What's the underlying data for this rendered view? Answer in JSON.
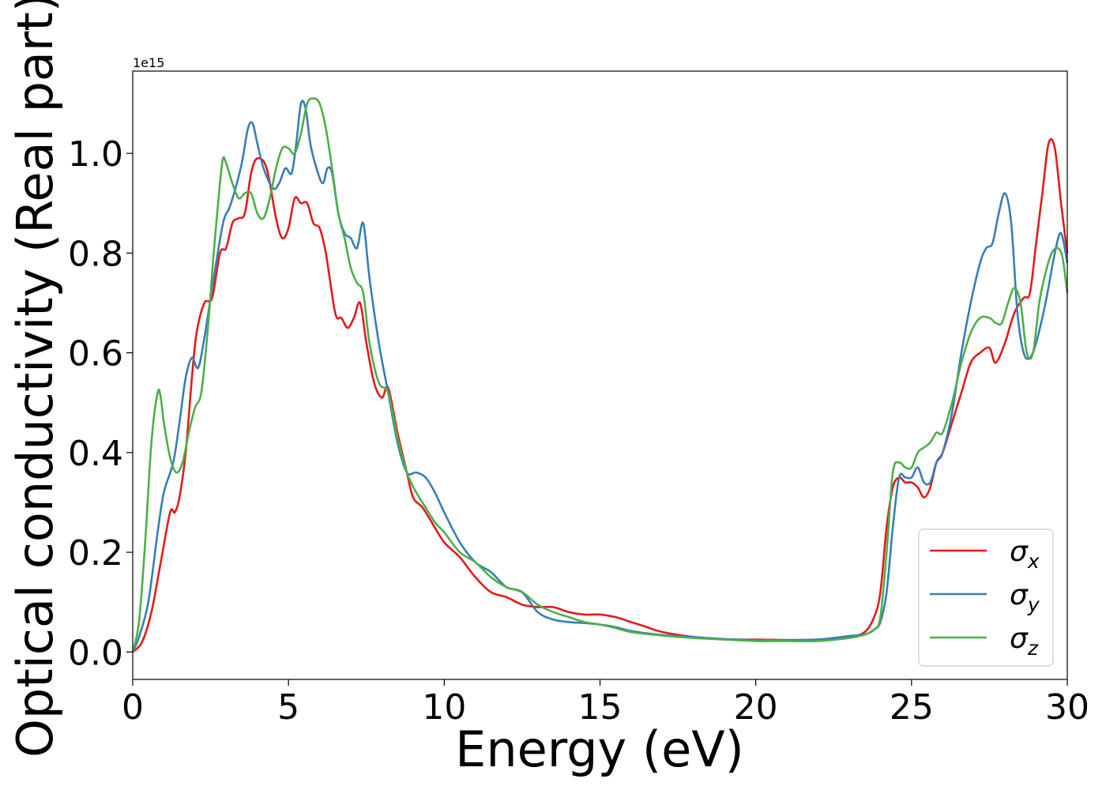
{
  "chart_data": {
    "type": "line",
    "xlabel": "Energy (eV)",
    "ylabel": "Optical conductivity (Real part)",
    "offset_text": "1e15",
    "xlim": [
      0,
      30
    ],
    "ylim": [
      -0.055,
      1.165
    ],
    "xticks": [
      0,
      5,
      10,
      15,
      20,
      25,
      30
    ],
    "xtick_labels": [
      "0",
      "5",
      "10",
      "15",
      "20",
      "25",
      "30"
    ],
    "yticks": [
      0.0,
      0.2,
      0.4,
      0.6,
      0.8,
      1.0
    ],
    "ytick_labels": [
      "0.0",
      "0.2",
      "0.4",
      "0.6",
      "0.8",
      "1.0"
    ],
    "grid": false,
    "legend_position": "lower-right",
    "series": [
      {
        "name": "σx",
        "symbol": "σ",
        "subscript": "x",
        "color": "#e41a1c",
        "x": [
          0,
          0.3,
          0.6,
          0.9,
          1.2,
          1.35,
          1.5,
          1.7,
          1.9,
          2.05,
          2.3,
          2.55,
          2.8,
          3.0,
          3.2,
          3.4,
          3.6,
          3.8,
          4.0,
          4.3,
          4.6,
          4.8,
          5.0,
          5.2,
          5.4,
          5.6,
          5.8,
          6.0,
          6.2,
          6.5,
          6.7,
          6.9,
          7.1,
          7.3,
          7.5,
          7.75,
          8.0,
          8.2,
          8.5,
          8.8,
          9.0,
          9.3,
          9.6,
          10.0,
          10.5,
          11.0,
          11.5,
          12.0,
          12.5,
          13.0,
          13.5,
          14.0,
          14.5,
          15.0,
          15.5,
          16.0,
          16.5,
          17.0,
          18.0,
          19.0,
          20.0,
          21.0,
          22.0,
          23.0,
          23.5,
          23.8,
          24.0,
          24.2,
          24.4,
          24.6,
          24.8,
          25.0,
          25.2,
          25.4,
          25.6,
          25.8,
          26.0,
          26.3,
          26.6,
          26.9,
          27.2,
          27.5,
          27.7,
          28.0,
          28.3,
          28.6,
          28.8,
          29.0,
          29.2,
          29.4,
          29.6,
          29.8,
          30.0
        ],
        "y": [
          0.0,
          0.02,
          0.08,
          0.18,
          0.28,
          0.28,
          0.31,
          0.4,
          0.55,
          0.64,
          0.7,
          0.71,
          0.8,
          0.81,
          0.86,
          0.87,
          0.88,
          0.96,
          0.99,
          0.97,
          0.87,
          0.83,
          0.85,
          0.91,
          0.9,
          0.9,
          0.86,
          0.85,
          0.8,
          0.68,
          0.67,
          0.65,
          0.67,
          0.7,
          0.62,
          0.54,
          0.51,
          0.53,
          0.44,
          0.36,
          0.31,
          0.29,
          0.26,
          0.22,
          0.19,
          0.15,
          0.12,
          0.11,
          0.095,
          0.09,
          0.09,
          0.08,
          0.075,
          0.075,
          0.07,
          0.06,
          0.05,
          0.04,
          0.03,
          0.025,
          0.025,
          0.024,
          0.025,
          0.03,
          0.04,
          0.07,
          0.12,
          0.25,
          0.33,
          0.35,
          0.34,
          0.34,
          0.33,
          0.31,
          0.33,
          0.38,
          0.4,
          0.46,
          0.52,
          0.58,
          0.6,
          0.61,
          0.58,
          0.62,
          0.68,
          0.71,
          0.72,
          0.82,
          0.92,
          1.02,
          1.01,
          0.9,
          0.8
        ]
      },
      {
        "name": "σy",
        "symbol": "σ",
        "subscript": "y",
        "color": "#377eb8",
        "x": [
          0,
          0.2,
          0.5,
          0.8,
          1.0,
          1.3,
          1.5,
          1.7,
          1.9,
          2.1,
          2.3,
          2.6,
          2.9,
          3.1,
          3.3,
          3.5,
          3.7,
          3.85,
          4.0,
          4.2,
          4.5,
          4.7,
          4.9,
          5.1,
          5.25,
          5.4,
          5.55,
          5.7,
          5.9,
          6.1,
          6.25,
          6.4,
          6.6,
          6.8,
          7.0,
          7.2,
          7.4,
          7.6,
          7.9,
          8.2,
          8.5,
          8.8,
          9.1,
          9.4,
          9.7,
          10.0,
          10.5,
          11.0,
          11.5,
          12.0,
          12.5,
          13.0,
          13.5,
          14.0,
          14.5,
          15.0,
          15.5,
          16.0,
          17.0,
          18.0,
          19.0,
          20.0,
          21.0,
          22.0,
          23.0,
          23.5,
          23.8,
          24.0,
          24.2,
          24.4,
          24.6,
          24.8,
          25.0,
          25.2,
          25.4,
          25.6,
          25.8,
          26.0,
          26.3,
          26.6,
          26.9,
          27.2,
          27.4,
          27.6,
          27.8,
          28.0,
          28.2,
          28.4,
          28.6,
          28.8,
          29.0,
          29.3,
          29.6,
          29.8,
          30.0
        ],
        "y": [
          0.0,
          0.03,
          0.1,
          0.24,
          0.32,
          0.38,
          0.46,
          0.55,
          0.59,
          0.57,
          0.63,
          0.75,
          0.86,
          0.89,
          0.93,
          0.98,
          1.05,
          1.06,
          1.02,
          0.97,
          0.93,
          0.94,
          0.97,
          0.96,
          1.02,
          1.1,
          1.09,
          1.02,
          0.97,
          0.94,
          0.97,
          0.96,
          0.88,
          0.84,
          0.83,
          0.81,
          0.86,
          0.75,
          0.62,
          0.52,
          0.42,
          0.36,
          0.36,
          0.35,
          0.32,
          0.28,
          0.22,
          0.18,
          0.16,
          0.13,
          0.12,
          0.08,
          0.065,
          0.06,
          0.058,
          0.055,
          0.05,
          0.042,
          0.034,
          0.03,
          0.026,
          0.024,
          0.024,
          0.025,
          0.032,
          0.035,
          0.045,
          0.06,
          0.12,
          0.25,
          0.35,
          0.35,
          0.35,
          0.37,
          0.34,
          0.34,
          0.38,
          0.4,
          0.48,
          0.6,
          0.7,
          0.78,
          0.81,
          0.82,
          0.88,
          0.92,
          0.86,
          0.68,
          0.6,
          0.59,
          0.62,
          0.7,
          0.8,
          0.84,
          0.78
        ]
      },
      {
        "name": "σz",
        "symbol": "σ",
        "subscript": "z",
        "color": "#4daf4a",
        "x": [
          0,
          0.2,
          0.4,
          0.6,
          0.8,
          0.9,
          1.0,
          1.2,
          1.4,
          1.6,
          1.8,
          2.0,
          2.2,
          2.4,
          2.6,
          2.8,
          2.9,
          3.0,
          3.2,
          3.4,
          3.6,
          3.8,
          4.0,
          4.2,
          4.4,
          4.6,
          4.8,
          5.0,
          5.2,
          5.4,
          5.6,
          5.8,
          6.0,
          6.2,
          6.4,
          6.6,
          6.8,
          7.0,
          7.2,
          7.4,
          7.6,
          7.9,
          8.2,
          8.5,
          8.8,
          9.1,
          9.4,
          9.7,
          10.0,
          10.5,
          11.0,
          11.5,
          12.0,
          12.5,
          13.0,
          13.5,
          14.0,
          14.5,
          15.0,
          15.5,
          16.0,
          17.0,
          18.0,
          19.0,
          20.0,
          21.0,
          22.0,
          23.0,
          23.5,
          23.8,
          24.0,
          24.2,
          24.4,
          24.6,
          24.8,
          25.0,
          25.2,
          25.4,
          25.6,
          25.8,
          26.0,
          26.3,
          26.6,
          26.9,
          27.2,
          27.5,
          27.7,
          27.9,
          28.1,
          28.3,
          28.5,
          28.7,
          28.9,
          29.1,
          29.3,
          29.5,
          29.7,
          29.85,
          30.0
        ],
        "y": [
          0.0,
          0.06,
          0.22,
          0.42,
          0.52,
          0.51,
          0.46,
          0.39,
          0.36,
          0.38,
          0.44,
          0.49,
          0.52,
          0.64,
          0.8,
          0.94,
          0.99,
          0.98,
          0.94,
          0.91,
          0.92,
          0.92,
          0.88,
          0.87,
          0.91,
          0.97,
          1.01,
          1.01,
          1.0,
          1.04,
          1.1,
          1.11,
          1.1,
          1.05,
          0.97,
          0.88,
          0.83,
          0.77,
          0.74,
          0.72,
          0.62,
          0.54,
          0.52,
          0.43,
          0.36,
          0.32,
          0.29,
          0.26,
          0.24,
          0.2,
          0.18,
          0.15,
          0.13,
          0.12,
          0.095,
          0.08,
          0.07,
          0.06,
          0.055,
          0.048,
          0.04,
          0.033,
          0.028,
          0.025,
          0.022,
          0.022,
          0.022,
          0.028,
          0.035,
          0.045,
          0.07,
          0.2,
          0.36,
          0.38,
          0.37,
          0.37,
          0.4,
          0.41,
          0.42,
          0.44,
          0.44,
          0.5,
          0.58,
          0.64,
          0.67,
          0.67,
          0.66,
          0.66,
          0.7,
          0.73,
          0.7,
          0.6,
          0.6,
          0.7,
          0.76,
          0.8,
          0.81,
          0.79,
          0.72
        ]
      }
    ]
  }
}
